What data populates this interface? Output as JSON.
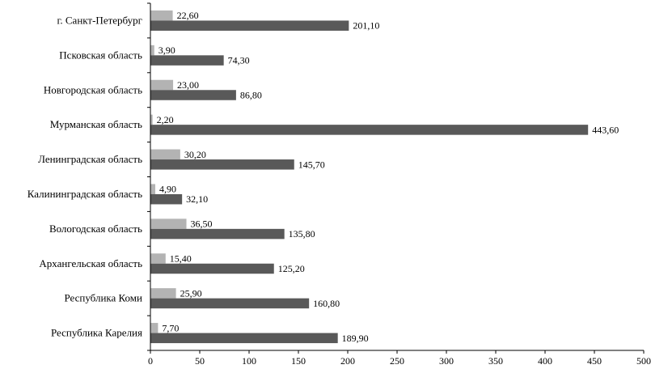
{
  "chart_data": {
    "type": "bar",
    "orientation": "horizontal",
    "title": "",
    "xlabel": "",
    "ylabel": "",
    "xlim": [
      0,
      500
    ],
    "ticks": [
      "0",
      "50",
      "100",
      "150",
      "200",
      "250",
      "300",
      "350",
      "400",
      "450",
      "500"
    ],
    "grid": false,
    "legend": "none",
    "categories": [
      "г. Санкт-Петербург",
      "Псковская область",
      "Новгородская область",
      "Мурманская область",
      "Ленинградская область",
      "Калининградская область",
      "Вологодская область",
      "Архангельская область",
      "Республика Коми",
      "Республика Карелия"
    ],
    "series": [
      {
        "color": "#b3b3b3",
        "values": [
          22.6,
          3.9,
          23.0,
          2.2,
          30.2,
          4.9,
          36.5,
          15.4,
          25.9,
          7.7
        ],
        "labels": [
          "22,60",
          "3,90",
          "23,00",
          "2,20",
          "30,20",
          "4,90",
          "36,50",
          "15,40",
          "25,90",
          "7,70"
        ]
      },
      {
        "color": "#595959",
        "values": [
          201.1,
          74.3,
          86.8,
          443.6,
          145.7,
          32.1,
          135.8,
          125.2,
          160.8,
          189.9
        ],
        "labels": [
          "201,10",
          "74,30",
          "86,80",
          "443,60",
          "145,70",
          "32,10",
          "135,80",
          "125,20",
          "160,80",
          "189,90"
        ]
      }
    ]
  }
}
